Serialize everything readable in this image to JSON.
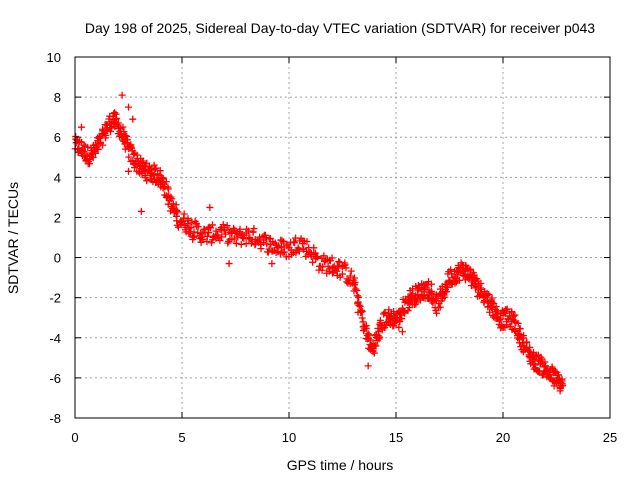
{
  "chart_data": {
    "type": "scatter",
    "title": "Day 198 of 2025, Sidereal Day-to-day VTEC variation (SDTVAR) for receiver p043",
    "xlabel": "GPS time / hours",
    "ylabel": "SDTVAR / TECUs",
    "xlim": [
      0,
      25
    ],
    "ylim": [
      -8,
      10
    ],
    "xticks": [
      "0",
      "5",
      "10",
      "15",
      "20",
      "25"
    ],
    "yticks": [
      "-8",
      "-6",
      "-4",
      "-2",
      "0",
      "2",
      "4",
      "6",
      "8",
      "10"
    ],
    "grid": true,
    "marker": "+",
    "series": [
      {
        "name": "SDTVAR",
        "color": "#ff0000",
        "trend": [
          [
            0.0,
            5.6
          ],
          [
            0.3,
            5.4
          ],
          [
            0.6,
            5.1
          ],
          [
            0.9,
            5.2
          ],
          [
            1.2,
            5.8
          ],
          [
            1.5,
            6.5
          ],
          [
            1.8,
            6.9
          ],
          [
            2.1,
            6.4
          ],
          [
            2.4,
            5.6
          ],
          [
            2.7,
            5.0
          ],
          [
            3.0,
            4.6
          ],
          [
            3.3,
            4.3
          ],
          [
            3.6,
            4.2
          ],
          [
            3.9,
            4.1
          ],
          [
            4.2,
            3.6
          ],
          [
            4.5,
            2.6
          ],
          [
            4.8,
            2.0
          ],
          [
            5.2,
            1.7
          ],
          [
            5.6,
            1.4
          ],
          [
            6.0,
            1.1
          ],
          [
            6.5,
            1.2
          ],
          [
            7.0,
            1.2
          ],
          [
            7.5,
            1.0
          ],
          [
            8.0,
            1.1
          ],
          [
            8.5,
            1.0
          ],
          [
            9.0,
            0.7
          ],
          [
            9.5,
            0.5
          ],
          [
            10.0,
            0.4
          ],
          [
            10.5,
            0.8
          ],
          [
            11.0,
            0.3
          ],
          [
            11.5,
            -0.3
          ],
          [
            12.0,
            -0.4
          ],
          [
            12.5,
            -0.6
          ],
          [
            13.0,
            -1.2
          ],
          [
            13.3,
            -2.5
          ],
          [
            13.6,
            -3.8
          ],
          [
            13.9,
            -4.6
          ],
          [
            14.2,
            -3.8
          ],
          [
            14.5,
            -3.0
          ],
          [
            14.8,
            -3.0
          ],
          [
            15.1,
            -3.1
          ],
          [
            15.4,
            -2.4
          ],
          [
            15.7,
            -2.0
          ],
          [
            16.0,
            -1.8
          ],
          [
            16.3,
            -1.6
          ],
          [
            16.6,
            -1.6
          ],
          [
            16.9,
            -2.4
          ],
          [
            17.2,
            -1.8
          ],
          [
            17.5,
            -1.0
          ],
          [
            17.8,
            -0.8
          ],
          [
            18.1,
            -0.6
          ],
          [
            18.4,
            -0.8
          ],
          [
            18.7,
            -1.3
          ],
          [
            19.0,
            -1.7
          ],
          [
            19.3,
            -2.1
          ],
          [
            19.6,
            -2.6
          ],
          [
            19.9,
            -3.1
          ],
          [
            20.2,
            -3.0
          ],
          [
            20.5,
            -3.2
          ],
          [
            20.8,
            -3.9
          ],
          [
            21.1,
            -4.6
          ],
          [
            21.4,
            -5.1
          ],
          [
            21.7,
            -5.3
          ],
          [
            22.0,
            -5.6
          ],
          [
            22.3,
            -5.9
          ],
          [
            22.6,
            -6.2
          ],
          [
            22.8,
            -6.4
          ]
        ],
        "outliers": [
          [
            0.3,
            6.5
          ],
          [
            2.2,
            8.1
          ],
          [
            2.5,
            7.5
          ],
          [
            2.7,
            6.9
          ],
          [
            3.1,
            2.3
          ],
          [
            2.5,
            4.3
          ],
          [
            6.3,
            2.5
          ],
          [
            5.5,
            0.9
          ],
          [
            7.2,
            -0.3
          ],
          [
            9.2,
            -0.3
          ],
          [
            15.3,
            -3.7
          ],
          [
            13.7,
            -5.4
          ]
        ]
      }
    ]
  }
}
